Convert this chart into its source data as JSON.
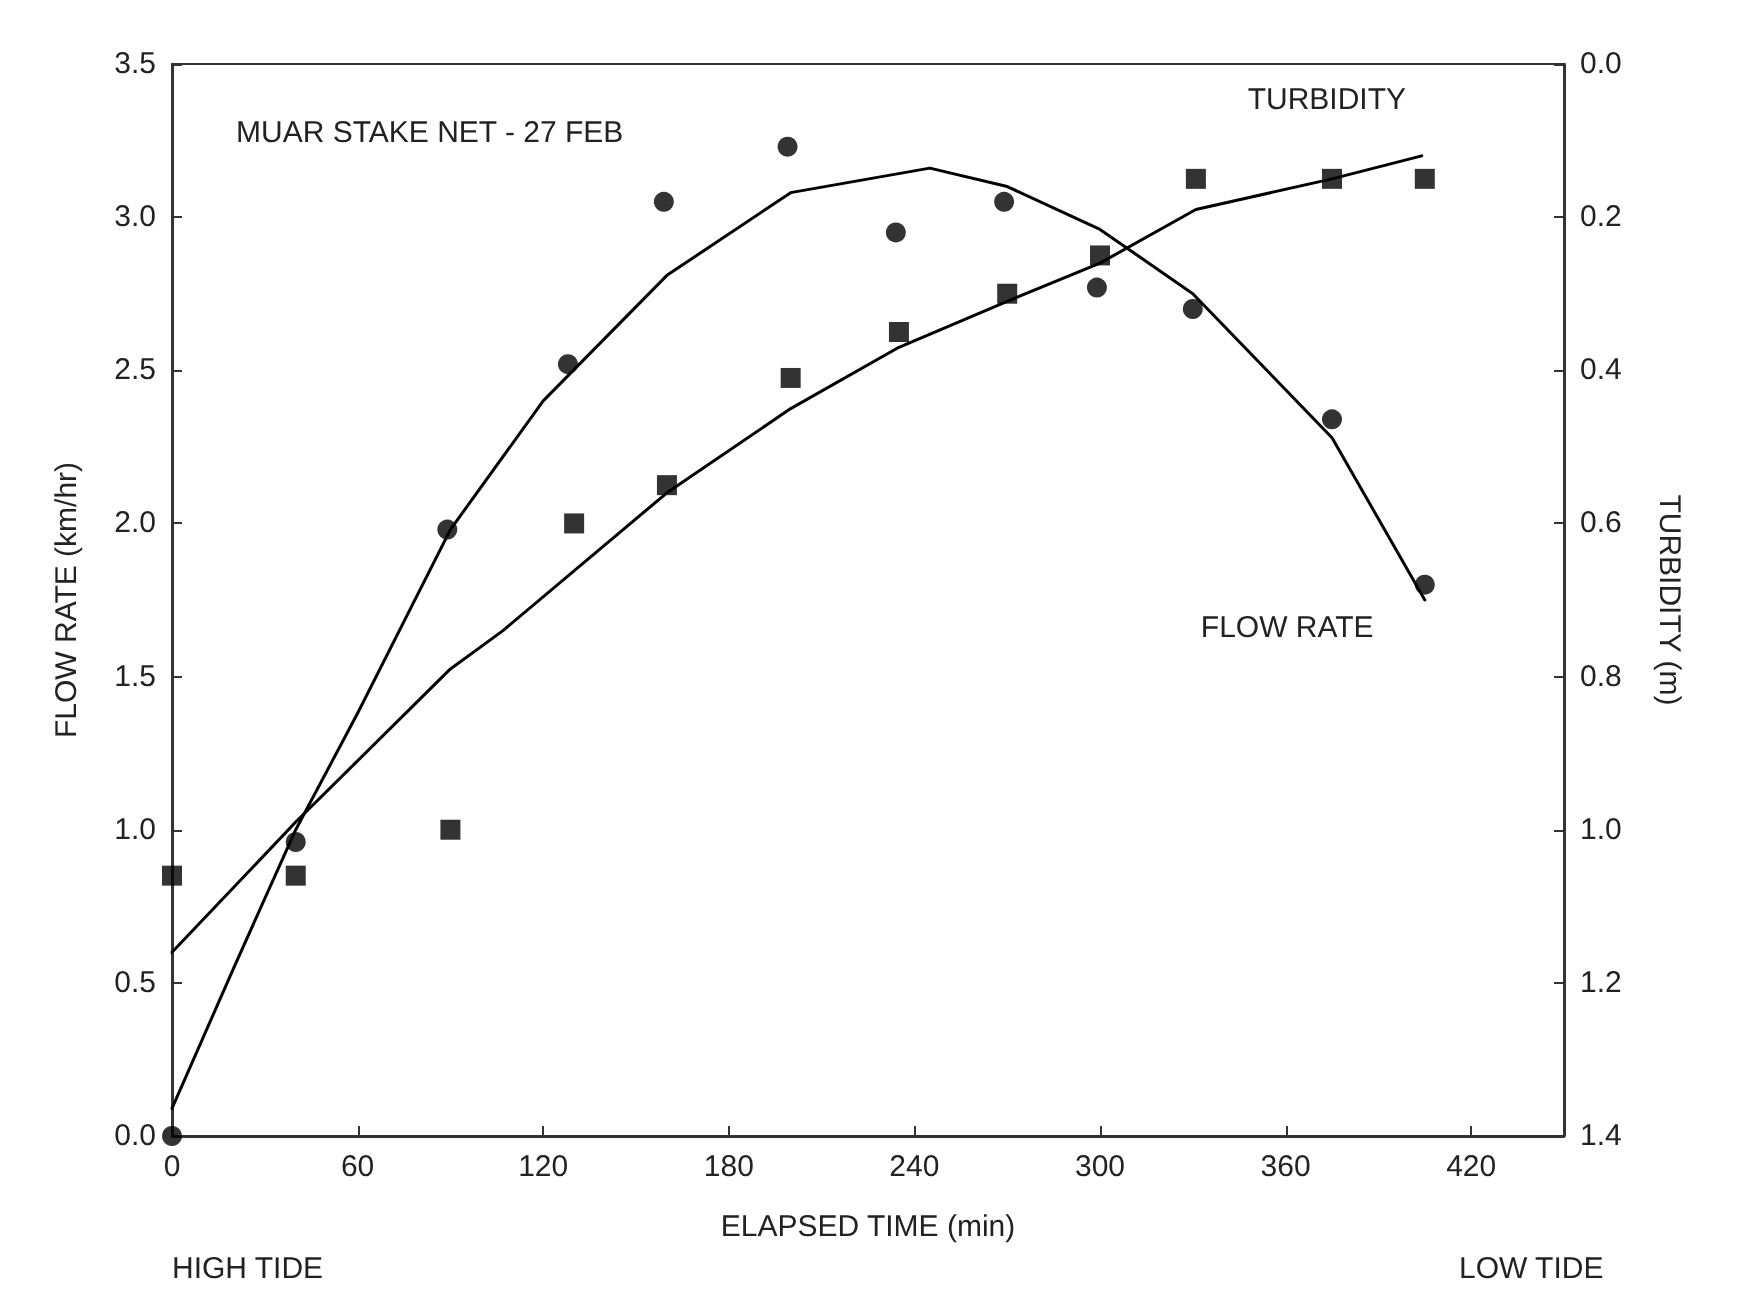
{
  "chart_data": {
    "type": "scatter",
    "title": "MUAR STAKE NET - 27 FEB",
    "xlabel": "ELAPSED TIME (min)",
    "ylabel": "FLOW RATE (km/hr)",
    "y2label": "TURBIDITY (m)",
    "annotations": [
      "HIGH TIDE",
      "LOW TIDE"
    ],
    "xlim": [
      0,
      450
    ],
    "xticks": [
      0,
      60,
      120,
      180,
      240,
      300,
      360,
      420
    ],
    "ylim": [
      0,
      3.5
    ],
    "yticks": [
      {
        "value": 0,
        "label": "0.0"
      },
      {
        "value": 0.5,
        "label": "0.5"
      },
      {
        "value": 1,
        "label": "1.0"
      },
      {
        "value": 1.5,
        "label": "1.5"
      },
      {
        "value": 2,
        "label": "2.0"
      },
      {
        "value": 2.5,
        "label": "2.5"
      },
      {
        "value": 3,
        "label": "3.0"
      },
      {
        "value": 3.5,
        "label": "3.5"
      }
    ],
    "y2lim": [
      1.4,
      0
    ],
    "y2ticks": [
      {
        "value": 0,
        "label": "0.0"
      },
      {
        "value": 0.2,
        "label": "0.2"
      },
      {
        "value": 0.4,
        "label": "0.4"
      },
      {
        "value": 0.6,
        "label": "0.6"
      },
      {
        "value": 0.8,
        "label": "0.8"
      },
      {
        "value": 1,
        "label": "1.0"
      },
      {
        "value": 1.2,
        "label": "1.2"
      },
      {
        "value": 1.4,
        "label": "1.4"
      }
    ],
    "grid": false,
    "legend": false,
    "series": [
      {
        "marker": "circle",
        "color": "#000000",
        "x": [
          0,
          40,
          89,
          128,
          159,
          199,
          234,
          269,
          299,
          330,
          375,
          405
        ],
        "values": [
          0.0,
          0.96,
          1.98,
          2.52,
          3.05,
          3.23,
          2.95,
          3.05,
          2.77,
          2.7,
          2.34,
          1.8
        ]
      },
      {
        "marker": "square",
        "axis": "y2",
        "color": "#000000",
        "x": [
          0,
          40,
          90,
          130,
          160,
          200,
          235,
          270,
          300,
          331,
          375,
          405
        ],
        "values": [
          1.06,
          1.06,
          1.0,
          0.6,
          0.55,
          0.41,
          0.35,
          0.3,
          0.25,
          0.15,
          0.15,
          0.15
        ]
      },
      {
        "type": "line",
        "name": "FLOW RATE",
        "marker": "none",
        "line_style": "solid",
        "color": "#000000",
        "x": [
          0,
          20,
          40,
          60,
          90,
          120,
          160,
          200,
          245,
          270,
          300,
          330,
          375,
          405
        ],
        "values": [
          0.09,
          0.55,
          1.0,
          1.38,
          1.98,
          2.4,
          2.81,
          3.08,
          3.16,
          3.1,
          2.96,
          2.75,
          2.28,
          1.75
        ]
      },
      {
        "type": "line",
        "name": "TURBIDITY",
        "axis": "y2",
        "marker": "none",
        "line_style": "solid",
        "color": "#000000",
        "x": [
          0,
          40,
          90,
          107,
          160,
          200,
          235,
          270,
          300,
          331,
          375,
          404
        ],
        "values": [
          1.16,
          0.99,
          0.79,
          0.74,
          0.56,
          0.45,
          0.37,
          0.31,
          0.26,
          0.19,
          0.15,
          0.12
        ]
      }
    ]
  }
}
